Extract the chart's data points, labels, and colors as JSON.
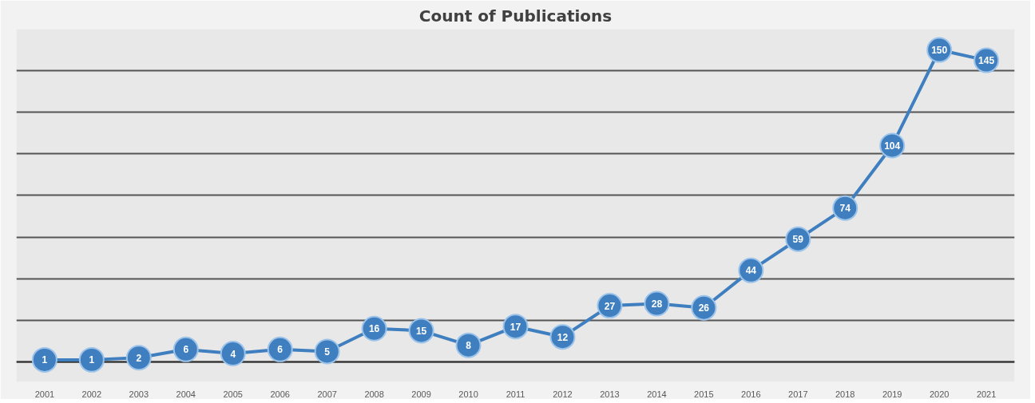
{
  "chart_data": {
    "type": "line",
    "title": "Count of Publications",
    "categories": [
      "2001",
      "2002",
      "2003",
      "2004",
      "2005",
      "2006",
      "2007",
      "2008",
      "2009",
      "2010",
      "2011",
      "2012",
      "2013",
      "2014",
      "2015",
      "2016",
      "2017",
      "2018",
      "2019",
      "2020",
      "2021"
    ],
    "series": [
      {
        "color": "#3f7fbf",
        "values": [
          1,
          1,
          2,
          6,
          4,
          6,
          5,
          16,
          15,
          8,
          17,
          12,
          27,
          28,
          26,
          44,
          59,
          74,
          104,
          150,
          145
        ]
      }
    ],
    "ylim": [
      0,
      160
    ],
    "yticks": [
      {
        "value": 0,
        "label": null
      },
      {
        "value": 20,
        "label": null
      },
      {
        "value": 40,
        "label": null
      },
      {
        "value": 60,
        "label": null
      },
      {
        "value": 80,
        "label": null
      },
      {
        "value": 100,
        "label": null
      },
      {
        "value": 120,
        "label": null
      },
      {
        "value": 140,
        "label": null
      },
      {
        "value": 160,
        "label": null
      }
    ],
    "tick_labels": "x",
    "grid": "y",
    "marker": "circle",
    "line_style": "solid",
    "data_labels": true
  }
}
